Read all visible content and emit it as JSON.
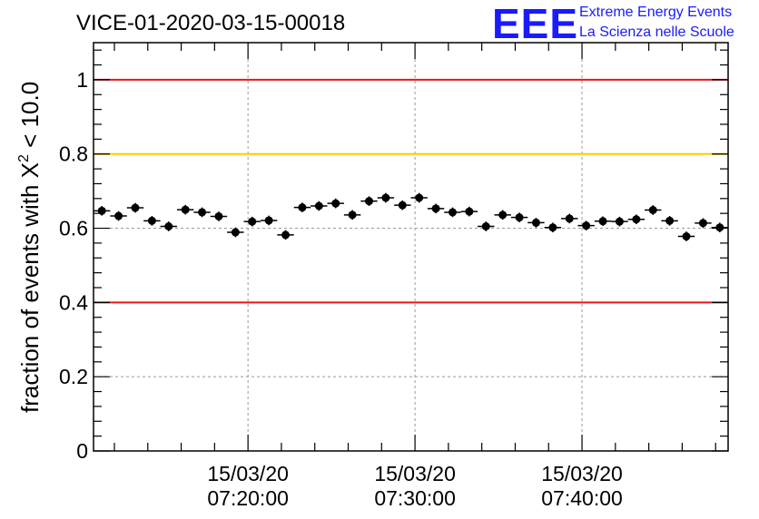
{
  "title": "VICE-01-2020-03-15-00018",
  "logo": {
    "letters": "EEE",
    "line1": "Extreme Energy Events",
    "line2": "La Scienza nelle Scuole"
  },
  "chart_data": {
    "type": "scatter",
    "title": "VICE-01-2020-03-15-00018",
    "ylabel": {
      "prefix": "fraction of events with ",
      "symbol": "X",
      "superscript": "2",
      "suffix": " < 10.0"
    },
    "xlabel": "",
    "ylim": [
      0,
      1.1
    ],
    "yticks": [
      {
        "value": 0,
        "label": "0"
      },
      {
        "value": 0.2,
        "label": "0.2"
      },
      {
        "value": 0.4,
        "label": "0.4"
      },
      {
        "value": 0.6,
        "label": "0.6"
      },
      {
        "value": 0.8,
        "label": "0.8"
      },
      {
        "value": 1,
        "label": "1"
      }
    ],
    "xlim": [
      "07:10:45",
      "07:48:45"
    ],
    "xticks": [
      {
        "time": "07:20:00",
        "date": "15/03/20",
        "label": "07:20:00"
      },
      {
        "time": "07:30:00",
        "date": "15/03/20",
        "label": "07:30:00"
      },
      {
        "time": "07:40:00",
        "date": "15/03/20",
        "label": "07:40:00"
      }
    ],
    "grid": true,
    "reference_lines": [
      {
        "y": 1.0,
        "color": "#e8141b"
      },
      {
        "y": 0.8,
        "color": "#ffcc00"
      },
      {
        "y": 0.4,
        "color": "#e8141b"
      }
    ],
    "marker_color": "#000000",
    "series": [
      {
        "x": [
          "07:11:15",
          "07:12:15",
          "07:13:15",
          "07:14:15",
          "07:15:15",
          "07:16:15",
          "07:17:15",
          "07:18:15",
          "07:19:15",
          "07:20:15",
          "07:21:15",
          "07:22:15",
          "07:23:15",
          "07:24:15",
          "07:25:15",
          "07:26:15",
          "07:27:15",
          "07:28:15",
          "07:29:15",
          "07:30:15",
          "07:31:15",
          "07:32:15",
          "07:33:15",
          "07:34:15",
          "07:35:15",
          "07:36:15",
          "07:37:15",
          "07:38:15",
          "07:39:15",
          "07:40:15",
          "07:41:15",
          "07:42:15",
          "07:43:15",
          "07:44:15",
          "07:45:15",
          "07:46:15",
          "07:47:15",
          "07:48:15"
        ],
        "y": [
          0.647,
          0.633,
          0.655,
          0.62,
          0.605,
          0.65,
          0.643,
          0.632,
          0.589,
          0.618,
          0.621,
          0.582,
          0.656,
          0.66,
          0.667,
          0.636,
          0.673,
          0.682,
          0.662,
          0.682,
          0.653,
          0.643,
          0.645,
          0.605,
          0.636,
          0.629,
          0.615,
          0.602,
          0.626,
          0.607,
          0.619,
          0.618,
          0.624,
          0.649,
          0.62,
          0.578,
          0.614,
          0.602
        ],
        "yerr": 0.013
      }
    ]
  }
}
